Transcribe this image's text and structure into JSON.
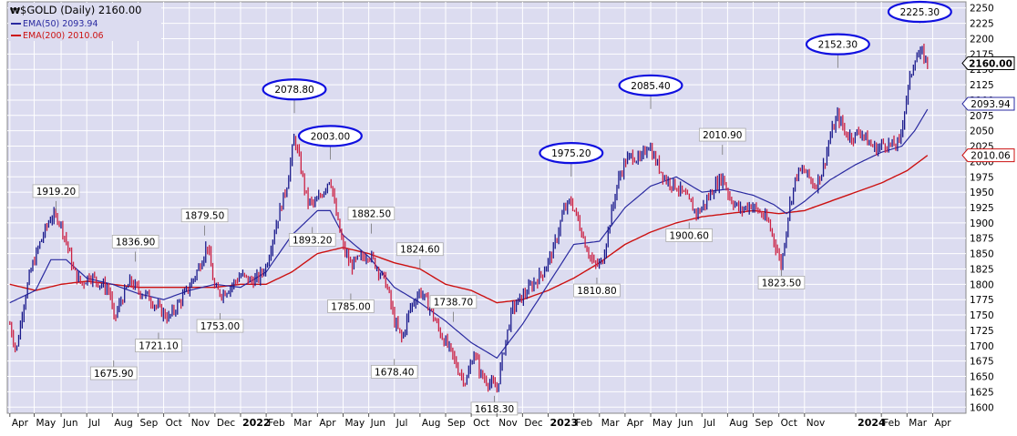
{
  "header": {
    "symbol_line": "$GOLD (Daily) 2160.00",
    "ema50_label": "EMA(50) 2093.94",
    "ema200_label": "EMA(200) 2010.06"
  },
  "colors": {
    "plot_bg": "#dcdcf0",
    "grid": "#ffffff",
    "up_bar": "#1a1a8c",
    "down_bar": "#cc2244",
    "ema50": "#2a2aa0",
    "ema200": "#cc1111",
    "highlight_ellipse": "#1010e0",
    "last_price_box": "#000000",
    "ema50_box": "#2a2aa0",
    "ema200_box": "#cc1111"
  },
  "chart_data": {
    "type": "line",
    "ylim": [
      1590,
      2260
    ],
    "y_ticks": [
      1600,
      1625,
      1650,
      1675,
      1700,
      1725,
      1750,
      1775,
      1800,
      1825,
      1850,
      1875,
      1900,
      1925,
      1950,
      1975,
      2000,
      2025,
      2050,
      2075,
      2100,
      2125,
      2150,
      2175,
      2200,
      2225,
      2250
    ],
    "x_ticks": [
      {
        "t": 0.0,
        "label": "Apr"
      },
      {
        "t": 0.95,
        "label": "May"
      },
      {
        "t": 2.0,
        "label": "Jun"
      },
      {
        "t": 3.0,
        "label": "Jul"
      },
      {
        "t": 4.0,
        "label": "Aug"
      },
      {
        "t": 5.0,
        "label": "Sep"
      },
      {
        "t": 6.0,
        "label": "Oct"
      },
      {
        "t": 7.0,
        "label": "Nov"
      },
      {
        "t": 8.0,
        "label": "Dec"
      },
      {
        "t": 9.0,
        "label": "2022",
        "bold": true
      },
      {
        "t": 10.0,
        "label": "Feb"
      },
      {
        "t": 11.0,
        "label": "Mar"
      },
      {
        "t": 12.0,
        "label": "Apr"
      },
      {
        "t": 13.0,
        "label": "May"
      },
      {
        "t": 14.0,
        "label": "Jun"
      },
      {
        "t": 15.0,
        "label": "Jul"
      },
      {
        "t": 16.0,
        "label": "Aug"
      },
      {
        "t": 17.0,
        "label": "Sep"
      },
      {
        "t": 18.0,
        "label": "Oct"
      },
      {
        "t": 19.0,
        "label": "Nov"
      },
      {
        "t": 20.0,
        "label": "Dec"
      },
      {
        "t": 21.0,
        "label": "2023",
        "bold": true
      },
      {
        "t": 22.0,
        "label": "Feb"
      },
      {
        "t": 23.0,
        "label": "Mar"
      },
      {
        "t": 24.0,
        "label": "Apr"
      },
      {
        "t": 25.0,
        "label": "May"
      },
      {
        "t": 26.0,
        "label": "Jun"
      },
      {
        "t": 27.0,
        "label": "Jul"
      },
      {
        "t": 28.0,
        "label": "Aug"
      },
      {
        "t": 29.0,
        "label": "Sep"
      },
      {
        "t": 30.0,
        "label": "Oct"
      },
      {
        "t": 31.0,
        "label": "Nov"
      },
      {
        "t": 33.0,
        "label": "2024",
        "bold": true
      },
      {
        "t": 34.0,
        "label": "Feb"
      },
      {
        "t": 35.0,
        "label": "Mar"
      },
      {
        "t": 36.0,
        "label": "Apr"
      }
    ],
    "price_anchors": [
      [
        0.0,
        1735
      ],
      [
        0.25,
        1690
      ],
      [
        0.5,
        1760
      ],
      [
        0.8,
        1820
      ],
      [
        1.2,
        1870
      ],
      [
        1.6,
        1910
      ],
      [
        1.9,
        1908
      ],
      [
        2.2,
        1870
      ],
      [
        2.5,
        1820
      ],
      [
        2.8,
        1800
      ],
      [
        3.1,
        1815
      ],
      [
        3.4,
        1805
      ],
      [
        3.9,
        1790
      ],
      [
        4.05,
        1740
      ],
      [
        4.3,
        1770
      ],
      [
        4.7,
        1805
      ],
      [
        5.0,
        1790
      ],
      [
        5.4,
        1780
      ],
      [
        5.8,
        1760
      ],
      [
        6.2,
        1745
      ],
      [
        6.6,
        1770
      ],
      [
        7.0,
        1795
      ],
      [
        7.4,
        1830
      ],
      [
        7.7,
        1865
      ],
      [
        8.0,
        1790
      ],
      [
        8.3,
        1785
      ],
      [
        8.7,
        1800
      ],
      [
        9.0,
        1815
      ],
      [
        9.4,
        1805
      ],
      [
        9.7,
        1810
      ],
      [
        10.0,
        1830
      ],
      [
        10.4,
        1900
      ],
      [
        10.8,
        1960
      ],
      [
        11.1,
        2040
      ],
      [
        11.35,
        1990
      ],
      [
        11.6,
        1935
      ],
      [
        11.9,
        1930
      ],
      [
        12.2,
        1950
      ],
      [
        12.5,
        1975
      ],
      [
        12.7,
        1920
      ],
      [
        13.0,
        1860
      ],
      [
        13.3,
        1830
      ],
      [
        13.6,
        1840
      ],
      [
        14.0,
        1850
      ],
      [
        14.3,
        1830
      ],
      [
        14.7,
        1800
      ],
      [
        15.0,
        1740
      ],
      [
        15.3,
        1710
      ],
      [
        15.6,
        1760
      ],
      [
        16.0,
        1790
      ],
      [
        16.4,
        1760
      ],
      [
        16.8,
        1720
      ],
      [
        17.2,
        1690
      ],
      [
        17.5,
        1660
      ],
      [
        17.8,
        1640
      ],
      [
        18.1,
        1690
      ],
      [
        18.4,
        1650
      ],
      [
        18.7,
        1640
      ],
      [
        19.0,
        1630
      ],
      [
        19.3,
        1700
      ],
      [
        19.6,
        1760
      ],
      [
        20.0,
        1780
      ],
      [
        20.4,
        1800
      ],
      [
        20.8,
        1820
      ],
      [
        21.2,
        1855
      ],
      [
        21.6,
        1920
      ],
      [
        21.9,
        1935
      ],
      [
        22.2,
        1900
      ],
      [
        22.5,
        1860
      ],
      [
        22.8,
        1830
      ],
      [
        23.1,
        1835
      ],
      [
        23.4,
        1900
      ],
      [
        23.7,
        1965
      ],
      [
        24.0,
        2000
      ],
      [
        24.3,
        2010
      ],
      [
        24.6,
        2000
      ],
      [
        24.9,
        2030
      ],
      [
        25.2,
        2000
      ],
      [
        25.6,
        1970
      ],
      [
        26.0,
        1960
      ],
      [
        26.4,
        1940
      ],
      [
        26.8,
        1915
      ],
      [
        27.1,
        1930
      ],
      [
        27.5,
        1960
      ],
      [
        27.8,
        1975
      ],
      [
        28.1,
        1940
      ],
      [
        28.5,
        1920
      ],
      [
        28.9,
        1930
      ],
      [
        29.3,
        1915
      ],
      [
        29.6,
        1900
      ],
      [
        29.9,
        1860
      ],
      [
        30.1,
        1830
      ],
      [
        30.4,
        1925
      ],
      [
        30.7,
        1980
      ],
      [
        31.0,
        1985
      ],
      [
        31.4,
        1960
      ],
      [
        31.7,
        1985
      ],
      [
        32.0,
        2040
      ],
      [
        32.3,
        2075
      ],
      [
        32.6,
        2045
      ],
      [
        32.9,
        2040
      ],
      [
        33.2,
        2050
      ],
      [
        33.5,
        2030
      ],
      [
        33.8,
        2020
      ],
      [
        34.1,
        2030
      ],
      [
        34.4,
        2025
      ],
      [
        34.7,
        2030
      ],
      [
        35.0,
        2110
      ],
      [
        35.3,
        2170
      ],
      [
        35.6,
        2175
      ],
      [
        35.8,
        2160
      ]
    ],
    "ema50": [
      [
        0.0,
        1770
      ],
      [
        1.0,
        1790
      ],
      [
        1.6,
        1840
      ],
      [
        2.2,
        1840
      ],
      [
        3.0,
        1810
      ],
      [
        4.0,
        1800
      ],
      [
        5.0,
        1785
      ],
      [
        6.0,
        1775
      ],
      [
        7.0,
        1790
      ],
      [
        8.0,
        1800
      ],
      [
        9.0,
        1795
      ],
      [
        10.0,
        1820
      ],
      [
        11.0,
        1880
      ],
      [
        12.0,
        1920
      ],
      [
        12.5,
        1920
      ],
      [
        13.0,
        1880
      ],
      [
        14.0,
        1845
      ],
      [
        15.0,
        1795
      ],
      [
        16.0,
        1770
      ],
      [
        17.0,
        1740
      ],
      [
        18.0,
        1705
      ],
      [
        19.0,
        1680
      ],
      [
        20.0,
        1735
      ],
      [
        21.0,
        1800
      ],
      [
        22.0,
        1865
      ],
      [
        23.0,
        1870
      ],
      [
        24.0,
        1925
      ],
      [
        25.0,
        1960
      ],
      [
        26.0,
        1975
      ],
      [
        27.0,
        1950
      ],
      [
        28.0,
        1955
      ],
      [
        29.0,
        1945
      ],
      [
        29.8,
        1930
      ],
      [
        30.3,
        1915
      ],
      [
        31.0,
        1935
      ],
      [
        32.0,
        1970
      ],
      [
        33.0,
        1995
      ],
      [
        34.0,
        2015
      ],
      [
        34.8,
        2025
      ],
      [
        35.3,
        2050
      ],
      [
        35.8,
        2085
      ]
    ],
    "ema200": [
      [
        0.0,
        1800
      ],
      [
        1.0,
        1790
      ],
      [
        2.0,
        1800
      ],
      [
        3.0,
        1805
      ],
      [
        4.0,
        1800
      ],
      [
        5.0,
        1795
      ],
      [
        6.0,
        1795
      ],
      [
        7.0,
        1795
      ],
      [
        8.0,
        1795
      ],
      [
        9.0,
        1800
      ],
      [
        10.0,
        1800
      ],
      [
        11.0,
        1820
      ],
      [
        12.0,
        1850
      ],
      [
        13.0,
        1860
      ],
      [
        14.0,
        1850
      ],
      [
        15.0,
        1835
      ],
      [
        16.0,
        1825
      ],
      [
        17.0,
        1800
      ],
      [
        18.0,
        1790
      ],
      [
        19.0,
        1770
      ],
      [
        20.0,
        1775
      ],
      [
        21.0,
        1790
      ],
      [
        22.0,
        1810
      ],
      [
        23.0,
        1835
      ],
      [
        24.0,
        1865
      ],
      [
        25.0,
        1885
      ],
      [
        26.0,
        1900
      ],
      [
        27.0,
        1910
      ],
      [
        28.0,
        1915
      ],
      [
        29.0,
        1920
      ],
      [
        30.0,
        1915
      ],
      [
        31.0,
        1920
      ],
      [
        32.0,
        1935
      ],
      [
        33.0,
        1950
      ],
      [
        34.0,
        1965
      ],
      [
        35.0,
        1985
      ],
      [
        35.8,
        2010
      ]
    ],
    "annotations": [
      {
        "t": 1.8,
        "value": 1919.2,
        "label": "1919.20",
        "pos": "above"
      },
      {
        "t": 4.05,
        "value": 1675.9,
        "label": "1675.90",
        "pos": "below"
      },
      {
        "t": 4.9,
        "value": 1836.9,
        "label": "1836.90",
        "pos": "above"
      },
      {
        "t": 5.8,
        "value": 1721.1,
        "label": "1721.10",
        "pos": "below"
      },
      {
        "t": 7.6,
        "value": 1879.5,
        "label": "1879.50",
        "pos": "above"
      },
      {
        "t": 8.2,
        "value": 1753.0,
        "label": "1753.00",
        "pos": "below"
      },
      {
        "t": 11.1,
        "value": 2078.8,
        "label": "2078.80",
        "pos": "above",
        "circled": true
      },
      {
        "t": 11.8,
        "value": 1893.2,
        "label": "1893.20",
        "pos": "below"
      },
      {
        "t": 12.5,
        "value": 2003.0,
        "label": "2003.00",
        "pos": "above",
        "circled": true
      },
      {
        "t": 13.3,
        "value": 1785.0,
        "label": "1785.00",
        "pos": "below"
      },
      {
        "t": 14.1,
        "value": 1882.5,
        "label": "1882.50",
        "pos": "above"
      },
      {
        "t": 15.0,
        "value": 1678.4,
        "label": "1678.40",
        "pos": "below"
      },
      {
        "t": 16.0,
        "value": 1824.6,
        "label": "1824.60",
        "pos": "above"
      },
      {
        "t": 17.3,
        "value": 1738.7,
        "label": "1738.70",
        "pos": "above"
      },
      {
        "t": 18.9,
        "value": 1618.3,
        "label": "1618.30",
        "pos": "below"
      },
      {
        "t": 21.9,
        "value": 1975.2,
        "label": "1975.20",
        "pos": "above",
        "circled": true
      },
      {
        "t": 22.9,
        "value": 1810.8,
        "label": "1810.80",
        "pos": "below"
      },
      {
        "t": 25.0,
        "value": 2085.4,
        "label": "2085.40",
        "pos": "above",
        "circled": true
      },
      {
        "t": 26.5,
        "value": 1900.6,
        "label": "1900.60",
        "pos": "below"
      },
      {
        "t": 27.8,
        "value": 2010.9,
        "label": "2010.90",
        "pos": "above"
      },
      {
        "t": 30.1,
        "value": 1823.5,
        "label": "1823.50",
        "pos": "below"
      },
      {
        "t": 32.3,
        "value": 2152.3,
        "label": "2152.30",
        "pos": "above",
        "circled": true
      },
      {
        "t": 35.5,
        "value": 2225.3,
        "label": "2225.30",
        "pos": "above",
        "circled": true
      }
    ],
    "axis_markers": [
      {
        "value": 2160.0,
        "label": "2160.00",
        "kind": "last"
      },
      {
        "value": 2093.94,
        "label": "2093.94",
        "kind": "ema50"
      },
      {
        "value": 2010.06,
        "label": "2010.06",
        "kind": "ema200"
      }
    ],
    "grid": true,
    "legend": "top-left"
  }
}
